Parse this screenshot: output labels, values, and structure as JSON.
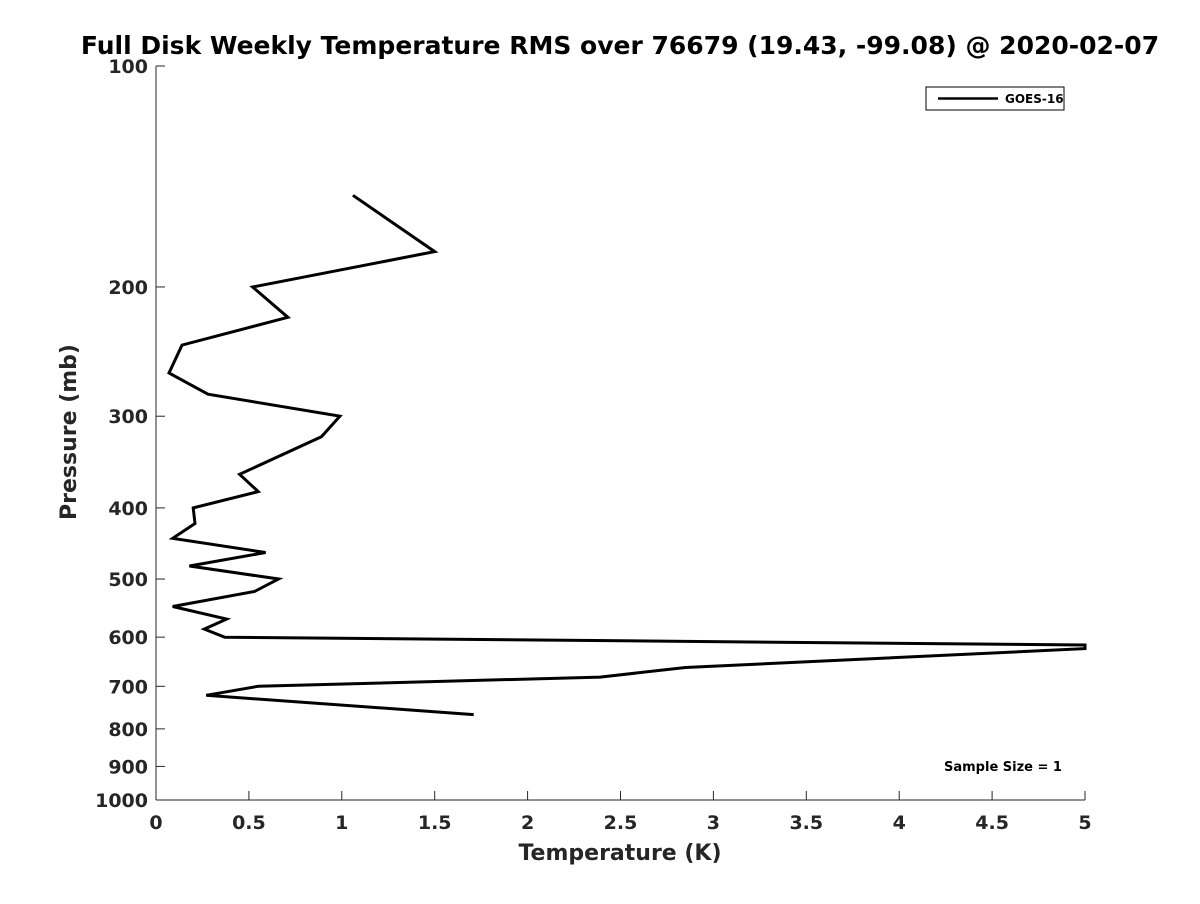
{
  "chart_data": {
    "type": "line",
    "title": "Full Disk Weekly Temperature RMS over 76679 (19.43, -99.08) @ 2020-02-07",
    "xlabel": "Temperature (K)",
    "ylabel": "Pressure (mb)",
    "xlim": [
      0,
      5
    ],
    "ylim": [
      100,
      1000
    ],
    "yscale": "log",
    "ydirection": "reverse",
    "grid": false,
    "legend_position": "top-right",
    "x_tick_labels": [
      "0",
      "0.5",
      "1",
      "1.5",
      "2",
      "2.5",
      "3",
      "3.5",
      "4",
      "4.5",
      "5"
    ],
    "x_ticks": [
      0,
      0.5,
      1,
      1.5,
      2,
      2.5,
      3,
      3.5,
      4,
      4.5,
      5
    ],
    "y_tick_labels": [
      "100",
      "200",
      "300",
      "400",
      "500",
      "600",
      "700",
      "800",
      "900",
      "1000"
    ],
    "y_ticks": [
      100,
      200,
      300,
      400,
      500,
      600,
      700,
      800,
      900,
      1000
    ],
    "annotation": "Sample Size = 1",
    "series": [
      {
        "name": "GOES-16",
        "color": "#000000",
        "points": [
          {
            "x": 1.06,
            "p": 150
          },
          {
            "x": 1.5,
            "p": 179
          },
          {
            "x": 0.52,
            "p": 200
          },
          {
            "x": 0.71,
            "p": 220
          },
          {
            "x": 0.14,
            "p": 240
          },
          {
            "x": 0.07,
            "p": 262
          },
          {
            "x": 0.28,
            "p": 280
          },
          {
            "x": 0.99,
            "p": 300
          },
          {
            "x": 0.89,
            "p": 320
          },
          {
            "x": 0.45,
            "p": 360
          },
          {
            "x": 0.55,
            "p": 380
          },
          {
            "x": 0.2,
            "p": 400
          },
          {
            "x": 0.21,
            "p": 420
          },
          {
            "x": 0.09,
            "p": 440
          },
          {
            "x": 0.59,
            "p": 460
          },
          {
            "x": 0.18,
            "p": 480
          },
          {
            "x": 0.66,
            "p": 500
          },
          {
            "x": 0.53,
            "p": 520
          },
          {
            "x": 0.09,
            "p": 545
          },
          {
            "x": 0.38,
            "p": 567
          },
          {
            "x": 0.26,
            "p": 585
          },
          {
            "x": 0.37,
            "p": 600
          },
          {
            "x": 5.0,
            "p": 615
          },
          {
            "x": 5.0,
            "p": 622
          },
          {
            "x": 2.85,
            "p": 660
          },
          {
            "x": 2.39,
            "p": 680
          },
          {
            "x": 0.55,
            "p": 700
          },
          {
            "x": 0.27,
            "p": 720
          },
          {
            "x": 1.71,
            "p": 765
          }
        ]
      }
    ]
  }
}
